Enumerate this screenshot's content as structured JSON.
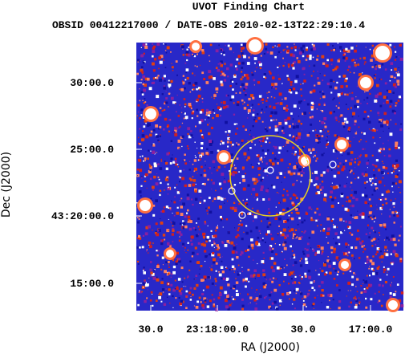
{
  "header": {
    "title": "UVOT Finding Chart",
    "subtitle": "OBSID 00412217000 / DATE-OBS 2010-02-13T22:29:10.4"
  },
  "axes": {
    "x_label": "RA (J2000)",
    "y_label": "Dec (J2000)",
    "x_tick_labels": [
      "30.0",
      "23:18:00.0",
      "30.0",
      "17:00.0"
    ],
    "y_tick_labels": [
      "30:00.0",
      "25:00.0",
      "43:20:00.0",
      "15:00.0"
    ]
  }
}
